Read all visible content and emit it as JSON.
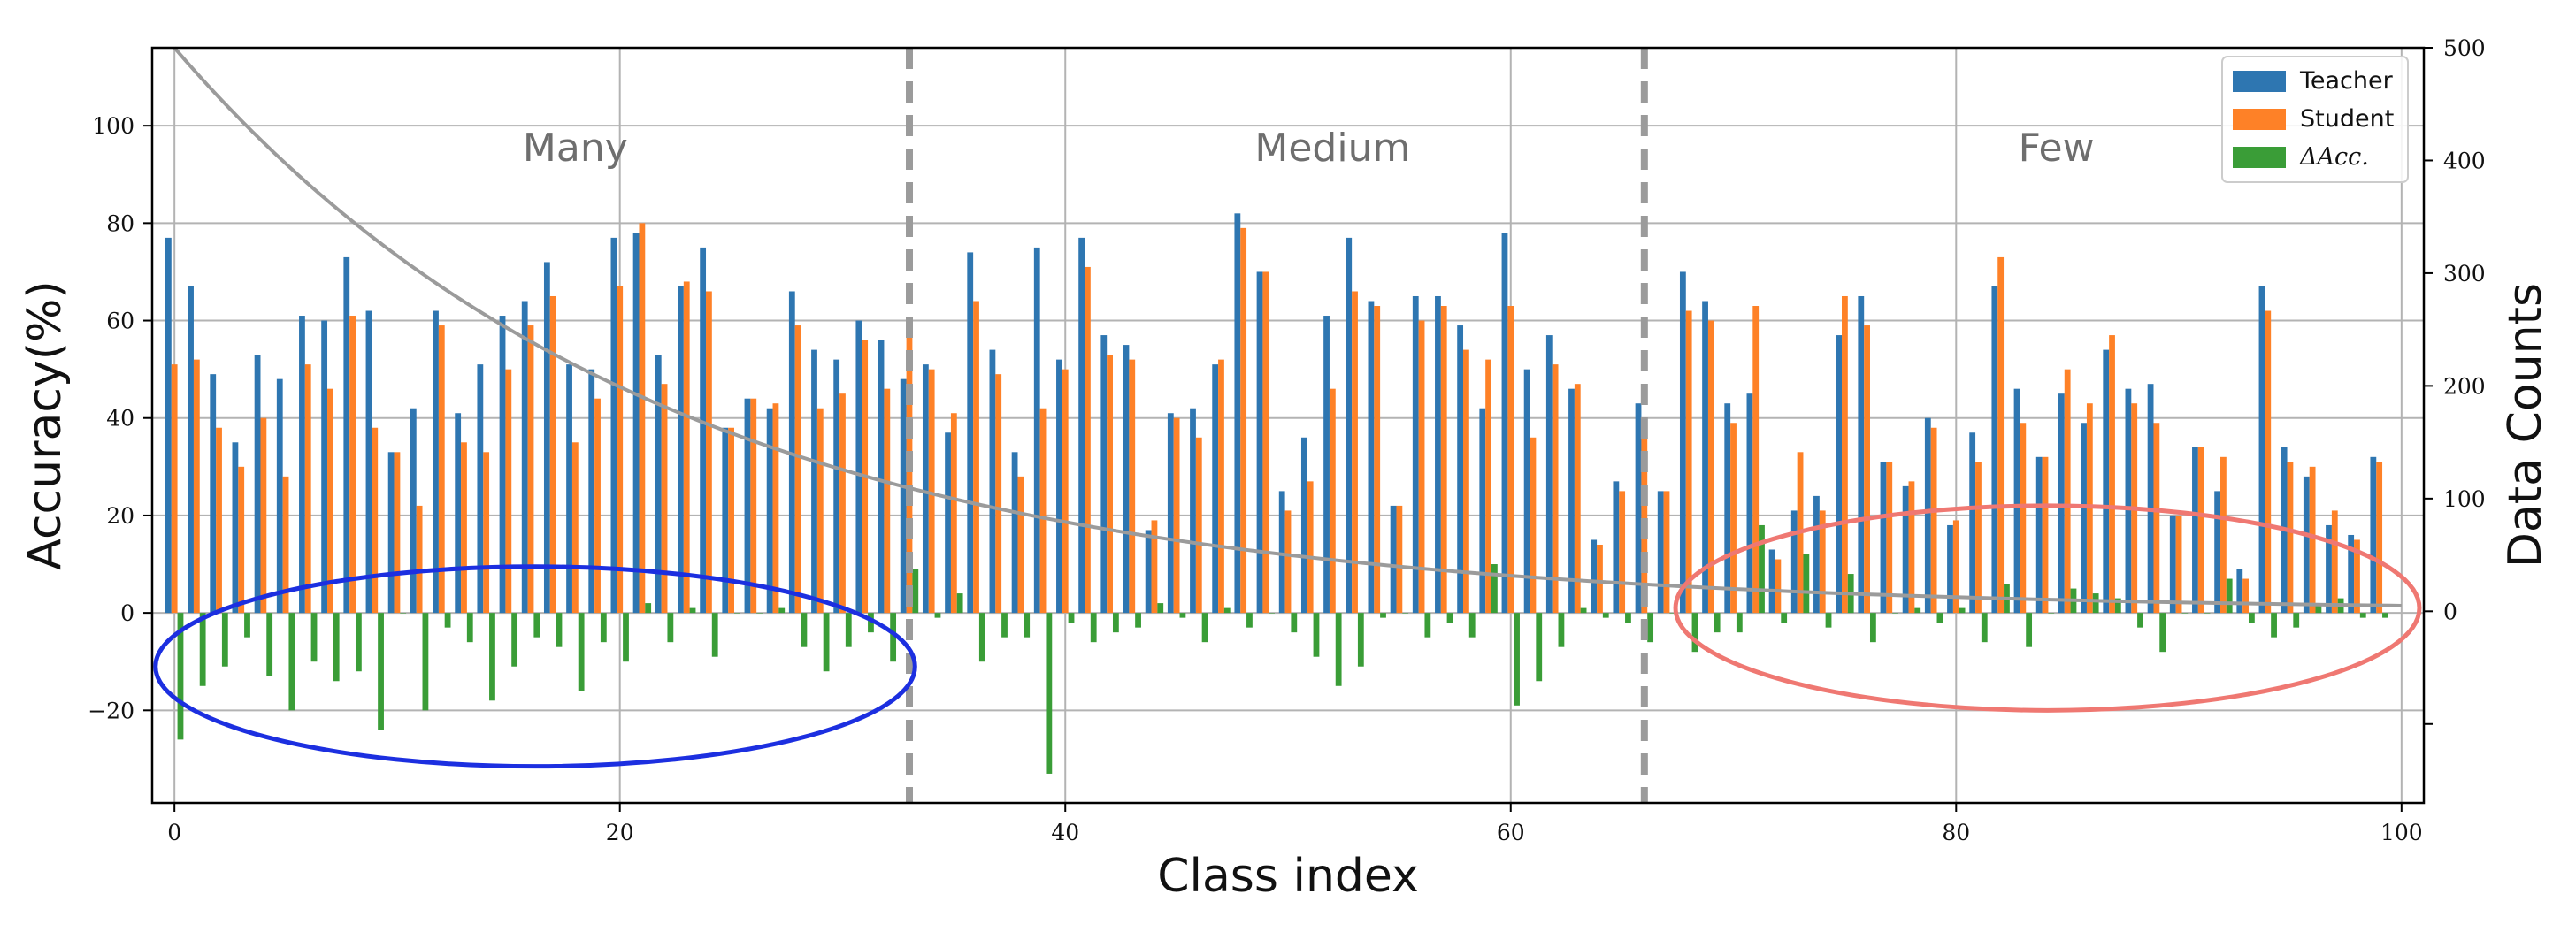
{
  "chart_data": {
    "type": "bar",
    "xlabel": "Class index",
    "ylabel": "Accuracy(%)",
    "y2label": "Data Counts",
    "xlim": [
      -1,
      101
    ],
    "ylim": [
      -39,
      116
    ],
    "y2lim": [
      -170,
      500
    ],
    "x_ticks": [
      0,
      20,
      40,
      60,
      80,
      100
    ],
    "y_ticks": [
      -20,
      0,
      20,
      40,
      60,
      80,
      100
    ],
    "y2_ticks": [
      0,
      100,
      200,
      300,
      400,
      500
    ],
    "y2_minor_tick": -100,
    "grid": true,
    "legend_position": "top-right",
    "colors": {
      "teacher": "#2e76b1",
      "student": "#fe8127",
      "delta": "#3a9d37",
      "curve": "#9b9b9b",
      "divider": "#9b9b9b",
      "many_ellipse": "#1c2fe0",
      "few_ellipse": "#ef7872"
    },
    "regions": [
      {
        "label": "Many",
        "x_center": 18,
        "range": [
          0,
          33
        ]
      },
      {
        "label": "Medium",
        "x_center": 52,
        "range": [
          33,
          66
        ]
      },
      {
        "label": "Few",
        "x_center": 84.5,
        "range": [
          66,
          100
        ]
      }
    ],
    "dividers": [
      33,
      66
    ],
    "series": [
      {
        "name": "Teacher",
        "values": [
          77,
          67,
          49,
          35,
          53,
          48,
          61,
          60,
          73,
          62,
          33,
          42,
          62,
          41,
          51,
          61,
          64,
          72,
          51,
          50,
          77,
          78,
          53,
          67,
          75,
          38,
          44,
          42,
          66,
          54,
          52,
          60,
          56,
          48,
          51,
          37,
          74,
          54,
          33,
          75,
          52,
          77,
          57,
          55,
          17,
          41,
          42,
          51,
          82,
          70,
          25,
          36,
          61,
          77,
          64,
          22,
          65,
          65,
          59,
          42,
          78,
          50,
          57,
          46,
          15,
          27,
          43,
          25,
          70,
          64,
          43,
          45,
          13,
          21,
          24,
          57,
          65,
          31,
          26,
          40,
          18,
          37,
          67,
          46,
          32,
          45,
          39,
          54,
          46,
          47,
          20,
          34,
          25,
          9,
          67,
          34,
          28,
          18,
          16,
          32
        ]
      },
      {
        "name": "Student",
        "values": [
          51,
          52,
          38,
          30,
          40,
          28,
          51,
          46,
          61,
          38,
          33,
          22,
          59,
          35,
          33,
          50,
          59,
          65,
          35,
          44,
          67,
          80,
          47,
          68,
          66,
          38,
          44,
          43,
          59,
          42,
          45,
          56,
          46,
          57,
          50,
          41,
          64,
          49,
          28,
          42,
          50,
          71,
          53,
          52,
          19,
          40,
          36,
          52,
          79,
          70,
          21,
          27,
          46,
          66,
          63,
          22,
          60,
          63,
          54,
          52,
          63,
          36,
          51,
          47,
          14,
          25,
          37,
          25,
          62,
          60,
          39,
          63,
          11,
          33,
          21,
          65,
          59,
          31,
          27,
          38,
          19,
          31,
          73,
          39,
          32,
          50,
          43,
          57,
          43,
          39,
          20,
          34,
          32,
          7,
          62,
          31,
          30,
          21,
          15,
          31
        ]
      },
      {
        "name": "ΔAcc.",
        "values": [
          -26,
          -15,
          -11,
          -5,
          -13,
          -20,
          -10,
          -14,
          -12,
          -24,
          0,
          -20,
          -3,
          -6,
          -18,
          -11,
          -5,
          -7,
          -16,
          -6,
          -10,
          2,
          -6,
          1,
          -9,
          0,
          0,
          1,
          -7,
          -12,
          -7,
          -4,
          -10,
          9,
          -1,
          4,
          -10,
          -5,
          -5,
          -33,
          -2,
          -6,
          -4,
          -3,
          2,
          -1,
          -6,
          1,
          -3,
          0,
          -4,
          -9,
          -15,
          -11,
          -1,
          0,
          -5,
          -2,
          -5,
          10,
          -19,
          -14,
          -7,
          1,
          -1,
          -2,
          -6,
          0,
          -8,
          -4,
          -4,
          18,
          -2,
          12,
          -3,
          8,
          -6,
          0,
          1,
          -2,
          1,
          -6,
          6,
          -7,
          0,
          5,
          4,
          3,
          -3,
          -8,
          0,
          0,
          7,
          -2,
          -5,
          -3,
          2,
          3,
          -1,
          -1
        ]
      }
    ],
    "curve_series": {
      "name": "Data Counts",
      "x0": 0,
      "x1": 100,
      "y0": 500,
      "y1": 5,
      "shape": "exponential"
    }
  }
}
